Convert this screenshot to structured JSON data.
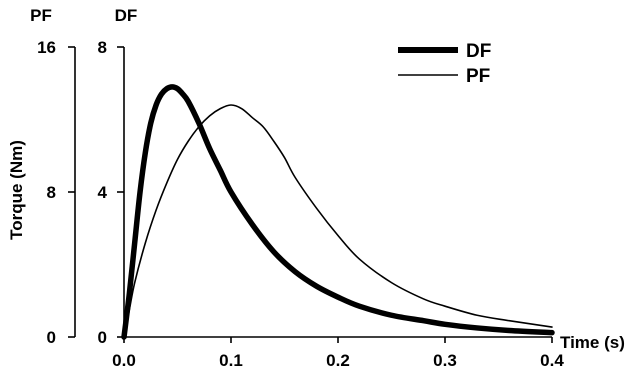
{
  "chart_data": {
    "type": "line",
    "xlabel": "Time (s)",
    "ylabel": "Torque (Nm)",
    "left_axis_label": "PF",
    "right_axis_label": "DF",
    "xlim": [
      0.0,
      0.4
    ],
    "x_ticks": [
      "0.0",
      "0.1",
      "0.2",
      "0.3",
      "0.4"
    ],
    "ylim_pf": [
      0,
      16
    ],
    "pf_ticks": [
      "0",
      "8",
      "16"
    ],
    "ylim_df": [
      0,
      8
    ],
    "df_ticks": [
      "0",
      "4",
      "8"
    ],
    "grid": false,
    "legend_position": "top-right",
    "series": [
      {
        "name": "DF",
        "axis": "DF",
        "color": "#000000",
        "line": "thick",
        "x": [
          0.0,
          0.005,
          0.01,
          0.015,
          0.02,
          0.025,
          0.03,
          0.035,
          0.04,
          0.045,
          0.05,
          0.055,
          0.06,
          0.07,
          0.08,
          0.09,
          0.1,
          0.12,
          0.14,
          0.16,
          0.18,
          0.2,
          0.22,
          0.25,
          0.28,
          0.3,
          0.33,
          0.36,
          0.4
        ],
        "values": [
          0.0,
          1.2,
          2.6,
          4.0,
          5.1,
          5.9,
          6.4,
          6.7,
          6.85,
          6.9,
          6.85,
          6.7,
          6.5,
          5.9,
          5.2,
          4.6,
          4.0,
          3.1,
          2.35,
          1.8,
          1.4,
          1.1,
          0.85,
          0.6,
          0.45,
          0.35,
          0.25,
          0.18,
          0.12
        ]
      },
      {
        "name": "PF",
        "axis": "PF",
        "color": "#000000",
        "line": "thin",
        "x": [
          0.0,
          0.005,
          0.01,
          0.02,
          0.03,
          0.04,
          0.05,
          0.06,
          0.07,
          0.08,
          0.09,
          0.1,
          0.11,
          0.12,
          0.13,
          0.14,
          0.15,
          0.16,
          0.18,
          0.2,
          0.22,
          0.25,
          0.28,
          0.3,
          0.33,
          0.36,
          0.4
        ],
        "values": [
          0.0,
          1.5,
          3.0,
          5.2,
          7.0,
          8.5,
          9.8,
          10.8,
          11.6,
          12.2,
          12.6,
          12.8,
          12.6,
          12.1,
          11.6,
          10.8,
          9.9,
          8.8,
          7.1,
          5.6,
          4.3,
          3.0,
          2.1,
          1.7,
          1.2,
          0.9,
          0.55
        ]
      }
    ]
  }
}
